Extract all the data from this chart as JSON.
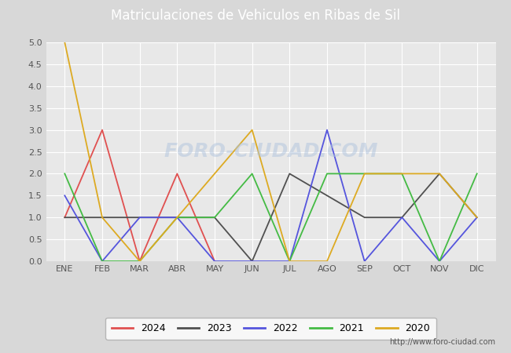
{
  "title": "Matriculaciones de Vehiculos en Ribas de Sil",
  "months": [
    "ENE",
    "FEB",
    "MAR",
    "ABR",
    "MAY",
    "JUN",
    "JUL",
    "AGO",
    "SEP",
    "OCT",
    "NOV",
    "DIC"
  ],
  "series": {
    "2024": {
      "color": "#e05050",
      "data": [
        1,
        3,
        0,
        2,
        0,
        null,
        null,
        null,
        null,
        null,
        null,
        null
      ]
    },
    "2023": {
      "color": "#505050",
      "data": [
        1,
        1,
        1,
        1,
        1,
        0,
        2,
        1.5,
        1,
        1,
        2,
        1
      ]
    },
    "2022": {
      "color": "#5555dd",
      "data": [
        1.5,
        0,
        1,
        1,
        0,
        0,
        0,
        3,
        0,
        1,
        0,
        1
      ]
    },
    "2021": {
      "color": "#44bb44",
      "data": [
        2,
        0,
        0,
        1,
        1,
        2,
        0,
        2,
        2,
        2,
        0,
        2
      ]
    },
    "2020": {
      "color": "#ddaa22",
      "data": [
        5,
        1,
        0,
        1,
        2,
        3,
        0,
        0,
        2,
        2,
        2,
        1
      ]
    }
  },
  "ylim": [
    0,
    5.0
  ],
  "yticks": [
    0.0,
    0.5,
    1.0,
    1.5,
    2.0,
    2.5,
    3.0,
    3.5,
    4.0,
    4.5,
    5.0
  ],
  "legend_order": [
    "2024",
    "2023",
    "2022",
    "2021",
    "2020"
  ],
  "header_bg": "#4a7db5",
  "header_text_color": "#ffffff",
  "plot_bg_color": "#e8e8e8",
  "fig_bg_color": "#d8d8d8",
  "grid_color": "#ffffff",
  "watermark": "FORO-CIUDAD.COM",
  "watermark_color": "#b0c4de",
  "url": "http://www.foro-ciudad.com",
  "url_color": "#555555",
  "tick_color": "#555555",
  "title_fontsize": 12,
  "tick_fontsize": 8,
  "legend_fontsize": 9,
  "linewidth": 1.3
}
